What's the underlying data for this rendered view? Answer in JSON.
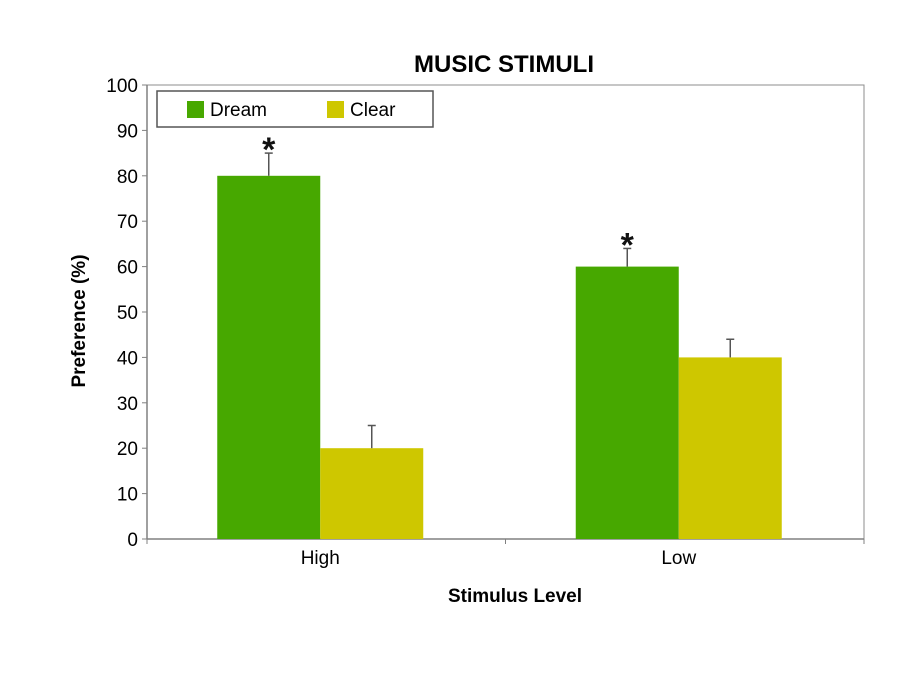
{
  "chart_data": {
    "type": "bar",
    "title": "MUSIC STIMULI",
    "xlabel": "Stimulus Level",
    "ylabel": "Preference (%)",
    "categories": [
      "High",
      "Low"
    ],
    "ylim": [
      0,
      100
    ],
    "ytick_step": 10,
    "yticks": [
      "0",
      "10",
      "20",
      "30",
      "40",
      "50",
      "60",
      "70",
      "80",
      "90",
      "100"
    ],
    "series": [
      {
        "name": "Dream",
        "values": [
          80,
          60
        ],
        "errors": [
          5,
          4
        ],
        "color": "#47a800"
      },
      {
        "name": "Clear",
        "values": [
          20,
          40
        ],
        "errors": [
          5,
          4
        ],
        "color": "#cec700"
      }
    ],
    "annotations": [
      {
        "text": "*",
        "series": "Dream",
        "category": "High"
      },
      {
        "text": "*",
        "series": "Dream",
        "category": "Low"
      }
    ],
    "grid": false,
    "legend_position": "top-left"
  }
}
